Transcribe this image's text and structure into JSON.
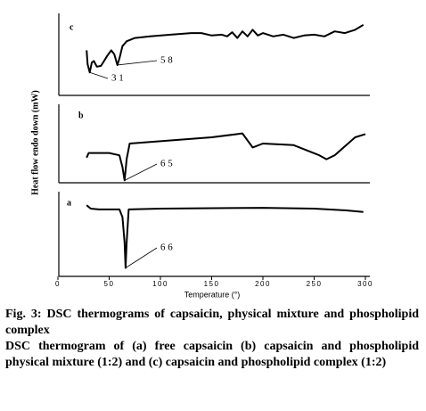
{
  "chart_data": {
    "type": "line",
    "y_label": "Heat flow endo down (mW)",
    "x_label": "Temperature (°)",
    "xlim": [
      0,
      300
    ],
    "xticks": [
      0,
      50,
      100,
      150,
      200,
      250,
      300
    ],
    "color": "#000000",
    "panels": [
      {
        "label": "c",
        "ylim": [
          0,
          100
        ],
        "x": [
          28,
          29,
          31,
          33,
          35,
          38,
          42,
          45,
          48,
          52,
          55,
          58,
          60,
          63,
          67,
          75,
          90,
          110,
          130,
          140,
          150,
          160,
          165,
          170,
          175,
          180,
          185,
          190,
          195,
          200,
          210,
          220,
          230,
          240,
          250,
          260,
          270,
          280,
          290,
          298
        ],
        "values": [
          55,
          38,
          28,
          40,
          42,
          35,
          36,
          42,
          48,
          55,
          50,
          37,
          45,
          60,
          66,
          70,
          72,
          74,
          76,
          76,
          73,
          74,
          72,
          77,
          70,
          78,
          72,
          80,
          73,
          76,
          72,
          74,
          70,
          73,
          74,
          72,
          78,
          76,
          80,
          86
        ],
        "annotations": [
          {
            "text": "3 1",
            "x": 31
          },
          {
            "text": "5 8",
            "x": 58
          }
        ]
      },
      {
        "label": "b",
        "ylim": [
          0,
          100
        ],
        "x": [
          28,
          30,
          40,
          50,
          60,
          63,
          65,
          67,
          70,
          100,
          150,
          175,
          180,
          190,
          200,
          230,
          255,
          262,
          270,
          290,
          300
        ],
        "values": [
          32,
          38,
          38,
          38,
          35,
          20,
          3,
          30,
          50,
          53,
          58,
          62,
          63,
          45,
          50,
          48,
          35,
          30,
          35,
          58,
          62
        ],
        "annotations": [
          {
            "text": "6 5",
            "x": 65
          }
        ]
      },
      {
        "label": "a",
        "ylim": [
          0,
          100
        ],
        "x": [
          28,
          32,
          40,
          60,
          63,
          65,
          66,
          67,
          69,
          100,
          200,
          250,
          280,
          298
        ],
        "values": [
          84,
          80,
          79,
          79,
          70,
          40,
          10,
          40,
          79,
          80,
          81,
          80,
          78,
          76
        ],
        "annotations": [
          {
            "text": "6 6",
            "x": 66
          }
        ]
      }
    ]
  },
  "caption": {
    "title": "Fig. 3: DSC thermograms of capsaicin, physical mixture and phospholipid complex",
    "text": "DSC thermogram of (a) free capsaicin (b) capsaicin and phospholipid physical mixture (1:2) and (c) capsaicin and phospholipid complex (1:2)"
  }
}
